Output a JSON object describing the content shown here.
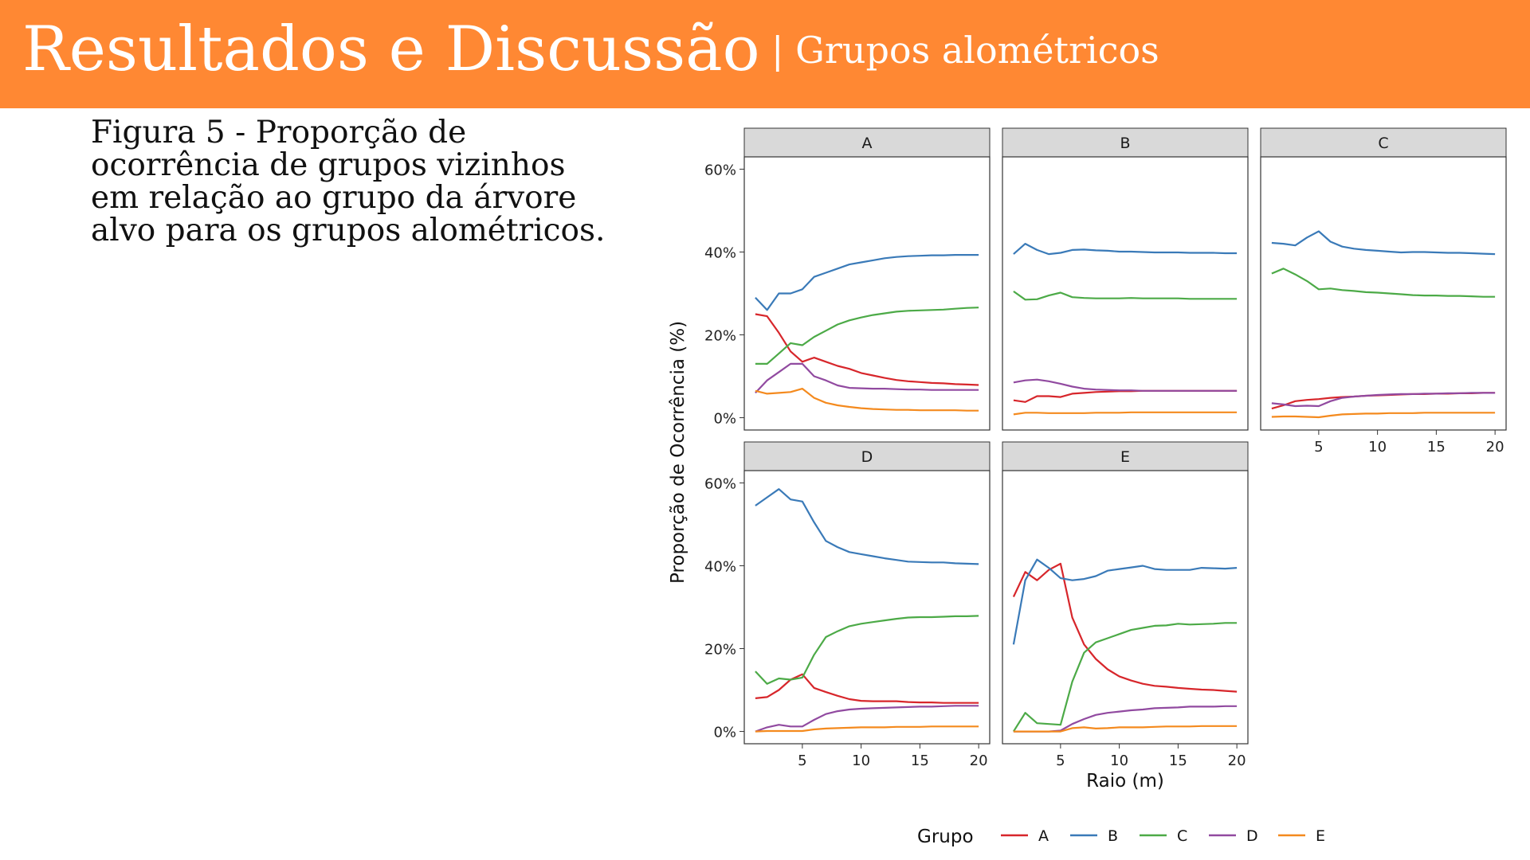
{
  "header": {
    "title": "Resultados e Discussão",
    "subtitle": "| Grupos alométricos"
  },
  "caption": {
    "lines": [
      "Figura 5 - Proporção de",
      "ocorrência de grupos vizinhos",
      "em relação ao grupo da árvore",
      "alvo para os grupos alométricos."
    ]
  },
  "colors": {
    "header_bg": "#ff8833",
    "A": "#d7262b",
    "B": "#3a7ab8",
    "C": "#4caa47",
    "D": "#914aa0",
    "E": "#f48a1e",
    "strip_bg": "#d9d9d9"
  },
  "chart_data": {
    "type": "line",
    "xlabel": "Raio (m)",
    "ylabel": "Proporção de Ocorrência (%)",
    "xlim": [
      0,
      20
    ],
    "ylim": [
      0,
      60
    ],
    "x_ticks": [
      5,
      10,
      15,
      20
    ],
    "y_ticks": [
      0,
      20,
      40,
      60
    ],
    "y_tick_labels": [
      "0%",
      "20%",
      "40%",
      "60%"
    ],
    "grid": false,
    "legend": {
      "title": "Grupo",
      "position": "bottom",
      "entries": [
        "A",
        "B",
        "C",
        "D",
        "E"
      ]
    },
    "x": [
      1,
      2,
      3,
      4,
      5,
      6,
      7,
      8,
      9,
      10,
      11,
      12,
      13,
      14,
      15,
      16,
      17,
      18,
      19,
      20
    ],
    "panels": [
      {
        "name": "A",
        "series": [
          {
            "name": "A",
            "values": [
              25.0,
              24.5,
              20.5,
              16.0,
              13.5,
              14.5,
              13.5,
              12.5,
              11.8,
              10.8,
              10.2,
              9.6,
              9.1,
              8.8,
              8.6,
              8.4,
              8.3,
              8.1,
              8.0,
              7.9
            ]
          },
          {
            "name": "B",
            "values": [
              29.0,
              26.0,
              30.0,
              30.0,
              31.0,
              34.0,
              35.0,
              36.0,
              37.0,
              37.5,
              38.0,
              38.5,
              38.8,
              39.0,
              39.1,
              39.2,
              39.2,
              39.3,
              39.3,
              39.3
            ]
          },
          {
            "name": "C",
            "values": [
              13.0,
              13.0,
              15.5,
              18.0,
              17.5,
              19.5,
              21.0,
              22.5,
              23.5,
              24.2,
              24.8,
              25.2,
              25.6,
              25.8,
              25.9,
              26.0,
              26.1,
              26.3,
              26.5,
              26.6
            ]
          },
          {
            "name": "D",
            "values": [
              6.0,
              9.0,
              11.0,
              13.0,
              13.0,
              10.0,
              9.0,
              7.8,
              7.2,
              7.1,
              7.0,
              7.0,
              6.9,
              6.8,
              6.8,
              6.7,
              6.7,
              6.7,
              6.7,
              6.7
            ]
          },
          {
            "name": "E",
            "values": [
              6.5,
              5.8,
              6.0,
              6.2,
              7.0,
              4.8,
              3.6,
              3.0,
              2.6,
              2.3,
              2.1,
              2.0,
              1.9,
              1.9,
              1.8,
              1.8,
              1.8,
              1.8,
              1.7,
              1.7
            ]
          }
        ]
      },
      {
        "name": "B",
        "series": [
          {
            "name": "A",
            "values": [
              4.2,
              3.8,
              5.2,
              5.2,
              5.0,
              5.8,
              6.0,
              6.2,
              6.3,
              6.4,
              6.4,
              6.5,
              6.5,
              6.5,
              6.5,
              6.5,
              6.5,
              6.5,
              6.5,
              6.5
            ]
          },
          {
            "name": "B",
            "values": [
              39.5,
              42.0,
              40.5,
              39.5,
              39.8,
              40.5,
              40.6,
              40.4,
              40.3,
              40.1,
              40.1,
              40.0,
              39.9,
              39.9,
              39.9,
              39.8,
              39.8,
              39.8,
              39.7,
              39.7
            ]
          },
          {
            "name": "C",
            "values": [
              30.5,
              28.5,
              28.6,
              29.5,
              30.2,
              29.1,
              28.9,
              28.8,
              28.8,
              28.8,
              28.9,
              28.8,
              28.8,
              28.8,
              28.8,
              28.7,
              28.7,
              28.7,
              28.7,
              28.7
            ]
          },
          {
            "name": "D",
            "values": [
              8.5,
              9.0,
              9.2,
              8.8,
              8.2,
              7.5,
              7.0,
              6.8,
              6.7,
              6.6,
              6.6,
              6.5,
              6.5,
              6.5,
              6.5,
              6.5,
              6.5,
              6.5,
              6.5,
              6.5
            ]
          },
          {
            "name": "E",
            "values": [
              0.8,
              1.2,
              1.2,
              1.1,
              1.1,
              1.1,
              1.1,
              1.2,
              1.2,
              1.2,
              1.3,
              1.3,
              1.3,
              1.3,
              1.3,
              1.3,
              1.3,
              1.3,
              1.3,
              1.3
            ]
          }
        ]
      },
      {
        "name": "C",
        "series": [
          {
            "name": "A",
            "values": [
              2.2,
              3.0,
              4.0,
              4.3,
              4.5,
              4.8,
              5.0,
              5.1,
              5.3,
              5.4,
              5.5,
              5.6,
              5.7,
              5.7,
              5.8,
              5.8,
              5.9,
              5.9,
              6.0,
              6.0
            ]
          },
          {
            "name": "B",
            "values": [
              42.2,
              42.0,
              41.6,
              43.5,
              45.0,
              42.5,
              41.3,
              40.8,
              40.5,
              40.3,
              40.1,
              39.9,
              40.0,
              40.0,
              39.9,
              39.8,
              39.8,
              39.7,
              39.6,
              39.5
            ]
          },
          {
            "name": "C",
            "values": [
              34.8,
              36.0,
              34.6,
              33.0,
              31.0,
              31.2,
              30.8,
              30.6,
              30.3,
              30.2,
              30.0,
              29.8,
              29.6,
              29.5,
              29.5,
              29.4,
              29.4,
              29.3,
              29.2,
              29.2
            ]
          },
          {
            "name": "D",
            "values": [
              3.5,
              3.2,
              2.8,
              2.9,
              2.8,
              4.0,
              4.8,
              5.1,
              5.3,
              5.5,
              5.6,
              5.7,
              5.7,
              5.8,
              5.8,
              5.9,
              5.9,
              6.0,
              6.0,
              6.0
            ]
          },
          {
            "name": "E",
            "values": [
              0.2,
              0.3,
              0.3,
              0.2,
              0.1,
              0.5,
              0.8,
              0.9,
              1.0,
              1.0,
              1.1,
              1.1,
              1.1,
              1.2,
              1.2,
              1.2,
              1.2,
              1.2,
              1.2,
              1.2
            ]
          }
        ]
      },
      {
        "name": "D",
        "series": [
          {
            "name": "A",
            "values": [
              8.0,
              8.3,
              10.0,
              12.5,
              13.8,
              10.5,
              9.5,
              8.6,
              7.8,
              7.4,
              7.3,
              7.3,
              7.3,
              7.1,
              7.0,
              7.0,
              6.9,
              6.9,
              6.9,
              6.9
            ]
          },
          {
            "name": "B",
            "values": [
              54.5,
              56.5,
              58.5,
              56.0,
              55.5,
              50.5,
              46.0,
              44.5,
              43.3,
              42.8,
              42.3,
              41.8,
              41.4,
              41.0,
              40.9,
              40.8,
              40.8,
              40.6,
              40.5,
              40.4
            ]
          },
          {
            "name": "C",
            "values": [
              14.5,
              11.5,
              12.8,
              12.5,
              13.0,
              18.5,
              22.8,
              24.2,
              25.4,
              26.0,
              26.4,
              26.8,
              27.2,
              27.5,
              27.6,
              27.6,
              27.7,
              27.8,
              27.8,
              27.9
            ]
          },
          {
            "name": "D",
            "values": [
              0.0,
              1.0,
              1.6,
              1.2,
              1.2,
              2.8,
              4.2,
              4.9,
              5.3,
              5.5,
              5.6,
              5.7,
              5.8,
              5.9,
              6.0,
              6.0,
              6.1,
              6.2,
              6.2,
              6.2
            ]
          },
          {
            "name": "E",
            "values": [
              0.0,
              0.1,
              0.1,
              0.1,
              0.1,
              0.5,
              0.7,
              0.8,
              0.9,
              1.0,
              1.0,
              1.0,
              1.1,
              1.1,
              1.1,
              1.2,
              1.2,
              1.2,
              1.2,
              1.2
            ]
          }
        ]
      },
      {
        "name": "E",
        "series": [
          {
            "name": "A",
            "values": [
              32.5,
              38.5,
              36.5,
              39.0,
              40.5,
              27.5,
              21.0,
              17.5,
              15.0,
              13.3,
              12.3,
              11.5,
              11.0,
              10.8,
              10.5,
              10.3,
              10.1,
              10.0,
              9.8,
              9.6
            ]
          },
          {
            "name": "B",
            "values": [
              21.0,
              36.5,
              41.5,
              39.5,
              37.0,
              36.5,
              36.8,
              37.5,
              38.8,
              39.2,
              39.6,
              40.0,
              39.2,
              39.0,
              39.0,
              39.0,
              39.5,
              39.4,
              39.3,
              39.5
            ]
          },
          {
            "name": "C",
            "values": [
              0.0,
              4.5,
              2.0,
              1.8,
              1.6,
              12.0,
              19.0,
              21.5,
              22.5,
              23.5,
              24.5,
              25.0,
              25.5,
              25.6,
              26.0,
              25.8,
              25.9,
              26.0,
              26.2,
              26.2
            ]
          },
          {
            "name": "D",
            "values": [
              0.0,
              0.0,
              0.0,
              0.0,
              0.2,
              1.8,
              3.0,
              4.0,
              4.5,
              4.8,
              5.1,
              5.3,
              5.6,
              5.7,
              5.8,
              6.0,
              6.0,
              6.0,
              6.1,
              6.1
            ]
          },
          {
            "name": "E",
            "values": [
              0.0,
              0.0,
              0.0,
              0.0,
              0.0,
              0.8,
              1.0,
              0.7,
              0.8,
              1.0,
              1.0,
              1.0,
              1.1,
              1.2,
              1.2,
              1.2,
              1.3,
              1.3,
              1.3,
              1.3
            ]
          }
        ]
      }
    ]
  }
}
